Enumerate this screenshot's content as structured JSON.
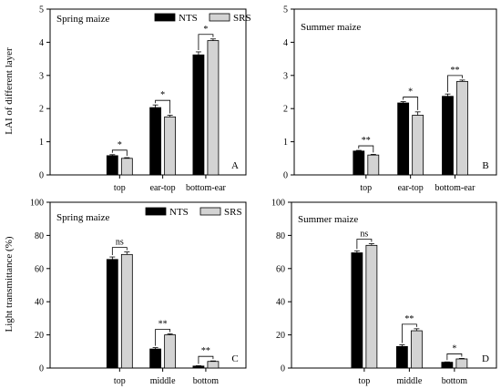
{
  "figure": {
    "y_axis_title_top": "LAI of different layer",
    "y_axis_title_bottom": "Light transmittance (%)"
  },
  "legend": {
    "items": [
      {
        "name": "NTS",
        "color": "#000000"
      },
      {
        "name": "SRS",
        "color": "#d3d3d3"
      }
    ]
  },
  "chart_data": [
    {
      "type": "bar",
      "panel": "A",
      "title": "Spring maize",
      "categories": [
        "top",
        "ear-top",
        "bottom-ear"
      ],
      "series": [
        {
          "name": "NTS",
          "values": [
            0.58,
            2.03,
            3.62
          ],
          "errors": [
            0.03,
            0.08,
            0.09
          ],
          "color": "#000000"
        },
        {
          "name": "SRS",
          "values": [
            0.5,
            1.75,
            4.05
          ],
          "errors": [
            0.02,
            0.05,
            0.05
          ],
          "color": "#d3d3d3"
        }
      ],
      "significance": [
        "*",
        "*",
        "*"
      ],
      "ylim": [
        0,
        5
      ],
      "yticks": [
        0,
        1,
        2,
        3,
        4,
        5
      ],
      "legend_position": "top"
    },
    {
      "type": "bar",
      "panel": "B",
      "title": "Summer maize",
      "categories": [
        "top",
        "ear-top",
        "bottom-ear"
      ],
      "series": [
        {
          "name": "NTS",
          "values": [
            0.72,
            2.17,
            2.37
          ],
          "errors": [
            0.02,
            0.04,
            0.07
          ],
          "color": "#000000"
        },
        {
          "name": "SRS",
          "values": [
            0.6,
            1.8,
            2.82
          ],
          "errors": [
            0.02,
            0.1,
            0.04
          ],
          "color": "#d3d3d3"
        }
      ],
      "significance": [
        "**",
        "*",
        "**"
      ],
      "ylim": [
        0,
        5
      ],
      "yticks": [
        0,
        1,
        2,
        3,
        4,
        5
      ]
    },
    {
      "type": "bar",
      "panel": "C",
      "title": "Spring maize",
      "categories": [
        "top",
        "middle",
        "bottom"
      ],
      "series": [
        {
          "name": "NTS",
          "values": [
            65.5,
            11.5,
            1.2
          ],
          "errors": [
            1.5,
            0.8,
            0.2
          ],
          "color": "#000000"
        },
        {
          "name": "SRS",
          "values": [
            68.5,
            20.0,
            4.0
          ],
          "errors": [
            1.5,
            0.6,
            0.3
          ],
          "color": "#d3d3d3"
        }
      ],
      "significance": [
        "ns",
        "**",
        "**"
      ],
      "ylim": [
        0,
        100
      ],
      "yticks": [
        0,
        20,
        40,
        60,
        80,
        100
      ],
      "legend_position": "top"
    },
    {
      "type": "bar",
      "panel": "D",
      "title": "Summer maize",
      "categories": [
        "top",
        "middle",
        "bottom"
      ],
      "series": [
        {
          "name": "NTS",
          "values": [
            69.5,
            13.0,
            3.5
          ],
          "errors": [
            1.2,
            1.0,
            0.2
          ],
          "color": "#000000"
        },
        {
          "name": "SRS",
          "values": [
            74.0,
            22.5,
            5.5
          ],
          "errors": [
            1.0,
            1.2,
            0.3
          ],
          "color": "#d3d3d3"
        }
      ],
      "significance": [
        "ns",
        "**",
        "*"
      ],
      "ylim": [
        0,
        100
      ],
      "yticks": [
        0,
        20,
        40,
        60,
        80,
        100
      ]
    }
  ]
}
